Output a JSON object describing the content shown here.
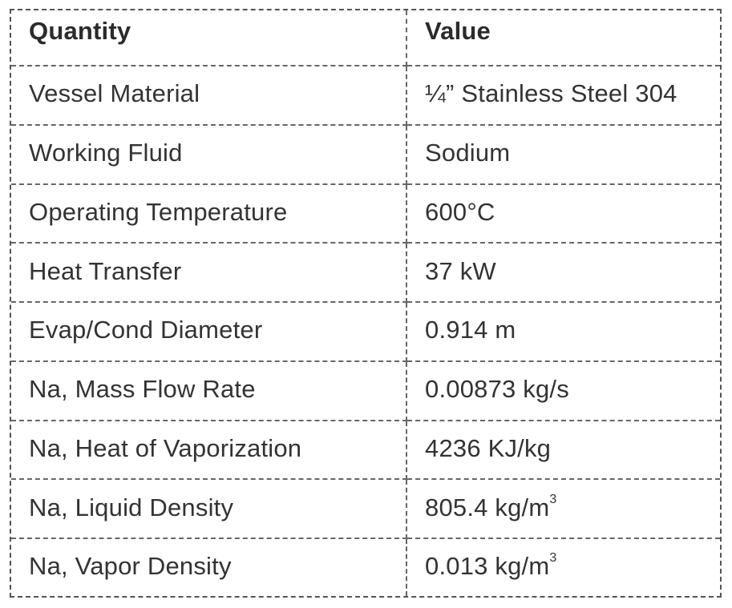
{
  "table": {
    "headers": {
      "quantity": "Quantity",
      "value": "Value"
    },
    "rows": [
      {
        "quantity": "Vessel Material",
        "value": "¼” Stainless Steel 304",
        "sup": ""
      },
      {
        "quantity": "Working Fluid",
        "value": "Sodium",
        "sup": ""
      },
      {
        "quantity": "Operating Temperature",
        "value": "600°C",
        "sup": ""
      },
      {
        "quantity": "Heat Transfer",
        "value": "37 kW",
        "sup": ""
      },
      {
        "quantity": "Evap/Cond Diameter",
        "value": "0.914 m",
        "sup": ""
      },
      {
        "quantity": "Na, Mass Flow Rate",
        "value": "0.00873 kg/s",
        "sup": ""
      },
      {
        "quantity": "Na, Heat of Vaporization",
        "value": "4236 KJ/kg",
        "sup": ""
      },
      {
        "quantity": "Na, Liquid Density",
        "value": "805.4 kg/m",
        "sup": "3"
      },
      {
        "quantity": "Na, Vapor Density",
        "value": "0.013 kg/m",
        "sup": "3"
      }
    ]
  }
}
